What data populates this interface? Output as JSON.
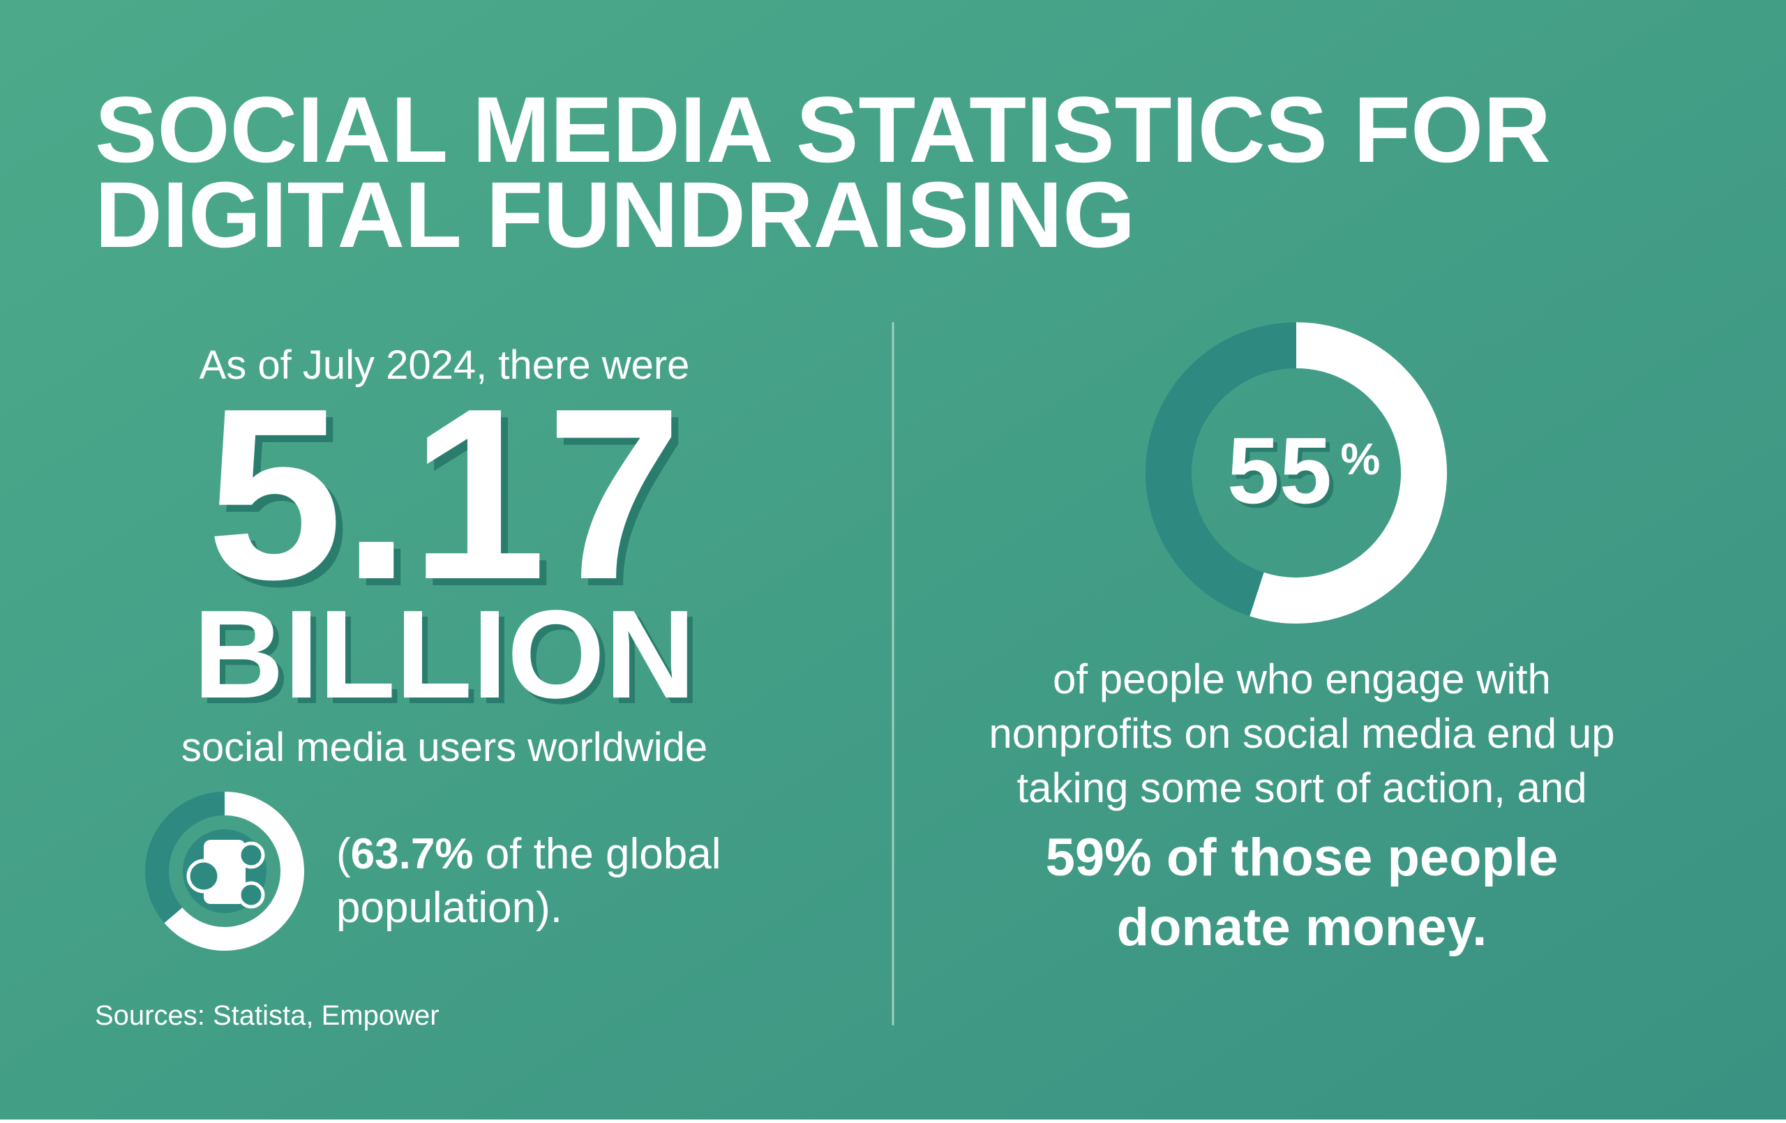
{
  "header": {
    "title_line1": "SOCIAL MEDIA STATISTICS FOR",
    "title_line2": "DIGITAL FUNDRAISING"
  },
  "left": {
    "intro": "As of July 2024, there were",
    "big_number": "5.17",
    "big_unit": "BILLION",
    "caption": "social media users worldwide",
    "population_note": {
      "open": "(",
      "share": {
        "value": 63.7,
        "label": "63.7%"
      },
      "line1_rest": " of the global",
      "line2": "population)."
    },
    "sources": "Sources: Statista, Empower"
  },
  "right": {
    "percent": 55,
    "percent_sign": "%",
    "lines": [
      "of people who engage with",
      "nonprofits on social media end up",
      "taking some sort of action, and"
    ],
    "bold_lines": [
      "59% of those people",
      "donate money."
    ]
  }
}
